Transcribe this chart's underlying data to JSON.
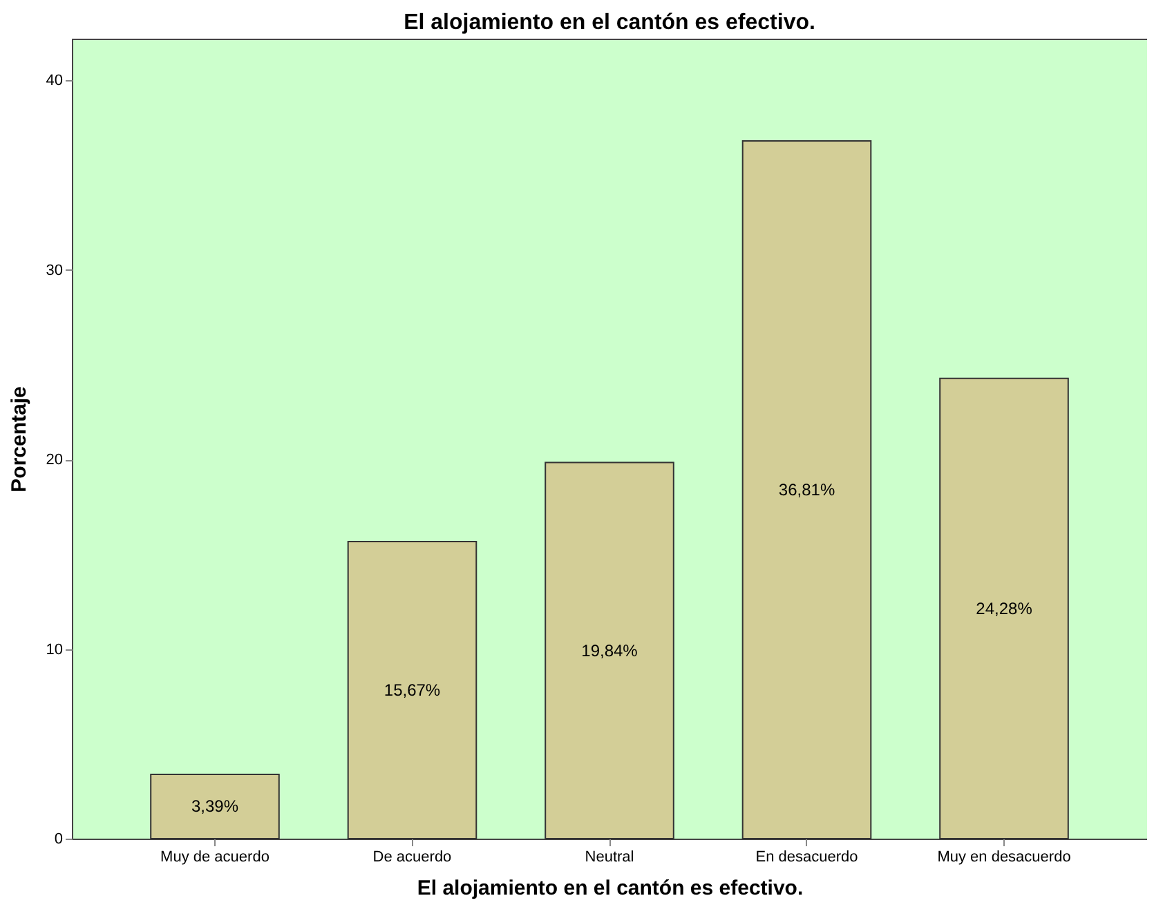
{
  "chart_data": {
    "type": "bar",
    "title": "El alojamiento en el cantón es efectivo.",
    "xlabel": "El alojamiento en el cantón es efectivo.",
    "ylabel": "Porcentaje",
    "categories": [
      "Muy de acuerdo",
      "De acuerdo",
      "Neutral",
      "En desacuerdo",
      "Muy en desacuerdo"
    ],
    "values": [
      3.39,
      15.67,
      19.84,
      36.81,
      24.28
    ],
    "value_labels": [
      "3,39%",
      "15,67%",
      "19,84%",
      "36,81%",
      "24,28%"
    ],
    "color": "#d3ce97",
    "ylim": [
      0,
      42.2
    ],
    "yticks": [
      0,
      10,
      20,
      30,
      40
    ],
    "grid": false
  }
}
